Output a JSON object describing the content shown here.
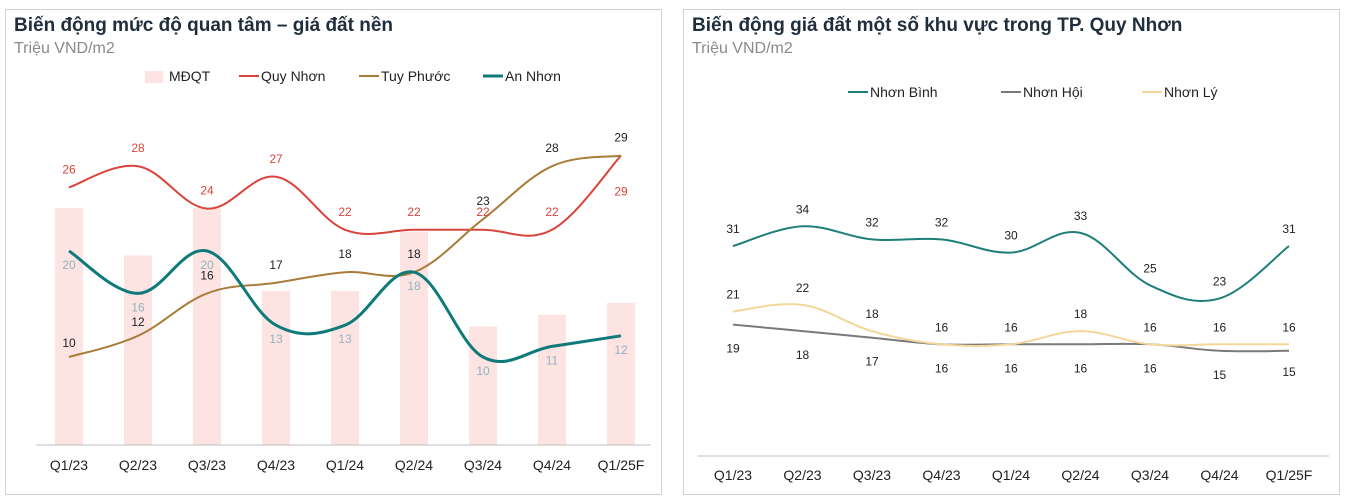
{
  "chart_data": [
    {
      "type": "bar+line",
      "title": "Biến động mức độ quan tâm – giá đất nền",
      "subtitle": "Triệu VND/m2",
      "categories": [
        "Q1/23",
        "Q2/23",
        "Q3/23",
        "Q4/23",
        "Q1/24",
        "Q2/24",
        "Q3/24",
        "Q4/24",
        "Q1/25F"
      ],
      "bar_series": {
        "name": "MĐQT",
        "color": "#fde4e2",
        "values": [
          20,
          16,
          20,
          13,
          13,
          18,
          10,
          11,
          12
        ],
        "labels": [
          "20",
          "16",
          "20",
          "13",
          "13",
          "18",
          "10",
          "11",
          "12"
        ],
        "label_color": "#8fb3bd"
      },
      "series": [
        {
          "name": "Quy Nhơn",
          "color": "#d9453a",
          "values": [
            26,
            28,
            24,
            27,
            22,
            22,
            22,
            22,
            29
          ],
          "labels": [
            "26",
            "28",
            "24",
            "27",
            "22",
            "22",
            "22",
            "22",
            "29"
          ]
        },
        {
          "name": "Tuy Phước",
          "color": "#a97c3a",
          "values": [
            10,
            12,
            16,
            17,
            18,
            18,
            23,
            28,
            29
          ],
          "labels": [
            "10",
            "12",
            "16",
            "17",
            "18",
            "18",
            "23",
            "28",
            "29"
          ]
        },
        {
          "name": "An Nhơn",
          "color": "#0e7a7a",
          "values": [
            20,
            16,
            20,
            13,
            13,
            18,
            10,
            11,
            12
          ],
          "labels": [],
          "note": "shared values with MĐQT bars"
        }
      ],
      "legend_position": "top",
      "grid": false
    },
    {
      "type": "line",
      "title": "Biến động giá đất  một số khu vực trong TP. Quy Nhơn",
      "subtitle": "Triệu VND/m2",
      "categories": [
        "Q1/23",
        "Q2/23",
        "Q3/23",
        "Q4/23",
        "Q1/24",
        "Q2/24",
        "Q3/24",
        "Q4/24",
        "Q1/25F"
      ],
      "series": [
        {
          "name": "Nhơn Bình",
          "color": "#1d7f7a",
          "values": [
            31,
            34,
            32,
            32,
            30,
            33,
            25,
            23,
            31
          ],
          "labels": [
            "31",
            "34",
            "32",
            "32",
            "30",
            "33",
            "25",
            "23",
            "31"
          ]
        },
        {
          "name": "Nhơn Hội",
          "color": "#7a7a7a",
          "values": [
            19,
            18,
            17,
            16,
            16,
            16,
            16,
            15,
            15
          ],
          "labels": [
            "19",
            "18",
            "17",
            "16",
            "16",
            "16",
            "16",
            "15",
            "15"
          ]
        },
        {
          "name": "Nhơn Lý",
          "color": "#f3d79a",
          "values": [
            21,
            22,
            18,
            16,
            16,
            18,
            16,
            16,
            16
          ],
          "labels": [
            "21",
            "22",
            "18",
            "16",
            "16",
            "18",
            "16",
            "16",
            "16"
          ]
        }
      ],
      "legend_position": "top",
      "grid": false
    }
  ]
}
